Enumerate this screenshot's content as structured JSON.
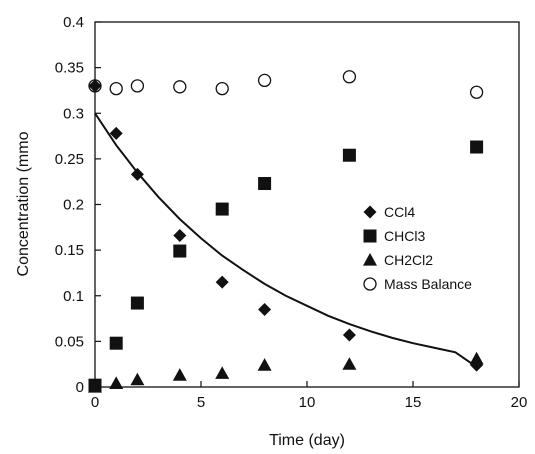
{
  "chart_data": {
    "type": "scatter",
    "xlabel": "Time (day)",
    "ylabel": "Concentration (mmo",
    "xlim": [
      0,
      20
    ],
    "ylim": [
      0,
      0.4
    ],
    "xticks": [
      "0",
      "5",
      "10",
      "15",
      "20"
    ],
    "yticks": [
      "0",
      "0.05",
      "0.1",
      "0.15",
      "0.2",
      "0.25",
      "0.3",
      "0.35",
      "0.4"
    ],
    "grid": false,
    "legend_position": "right",
    "series": [
      {
        "name": "CCl4",
        "marker": "diamond",
        "x": [
          0,
          1,
          2,
          4,
          6,
          8,
          12,
          18
        ],
        "y": [
          0.33,
          0.278,
          0.233,
          0.166,
          0.115,
          0.085,
          0.057,
          0.024
        ]
      },
      {
        "name": "CHCl3",
        "marker": "square",
        "x": [
          0,
          1,
          2,
          4,
          6,
          8,
          12,
          18
        ],
        "y": [
          0.002,
          0.048,
          0.092,
          0.149,
          0.195,
          0.223,
          0.254,
          0.263
        ]
      },
      {
        "name": "CH2Cl2",
        "marker": "triangle",
        "x": [
          0,
          1,
          2,
          4,
          6,
          8,
          12,
          18
        ],
        "y": [
          0.0,
          0.004,
          0.008,
          0.013,
          0.015,
          0.024,
          0.025,
          0.031
        ]
      },
      {
        "name": "Mass Balance",
        "marker": "open-circle",
        "x": [
          0,
          1,
          2,
          4,
          6,
          8,
          12,
          18
        ],
        "y": [
          0.33,
          0.327,
          0.33,
          0.329,
          0.327,
          0.336,
          0.34,
          0.323
        ]
      }
    ],
    "fit_curve": {
      "x": [
        0,
        1,
        2,
        3,
        4,
        5,
        6,
        7,
        8,
        9,
        10,
        11,
        12,
        13,
        14,
        15,
        16,
        17,
        18
      ],
      "y": [
        0.3,
        0.265,
        0.235,
        0.208,
        0.184,
        0.163,
        0.144,
        0.128,
        0.113,
        0.1,
        0.089,
        0.078,
        0.069,
        0.061,
        0.054,
        0.048,
        0.043,
        0.038,
        0.022
      ]
    }
  },
  "colors": {
    "markers": "#111111",
    "axis": "#111111",
    "background": "#ffffff"
  }
}
